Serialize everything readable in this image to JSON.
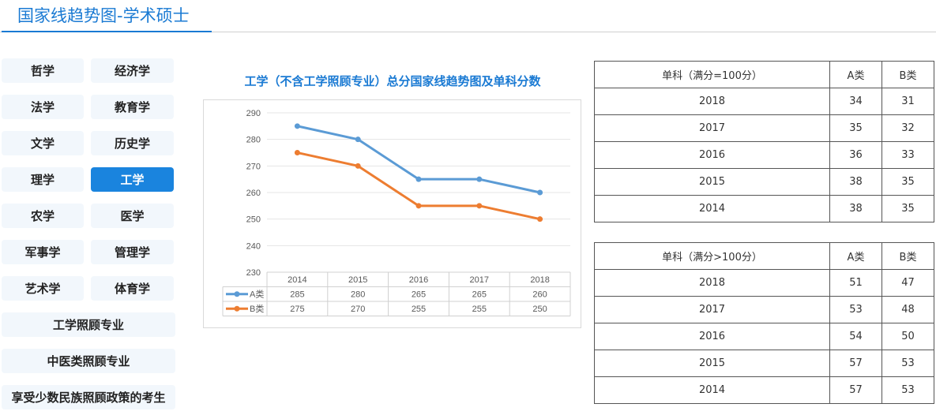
{
  "page_title": "国家线趋势图-学术硕士",
  "disciplines": [
    "哲学",
    "经济学",
    "法学",
    "教育学",
    "文学",
    "历史学",
    "理学",
    "工学",
    "农学",
    "医学",
    "军事学",
    "管理学",
    "艺术学",
    "体育学"
  ],
  "special_categories": [
    "工学照顾专业",
    "中医类照顾专业",
    "享受少数民族照顾政策的考生"
  ],
  "active_discipline": "工学",
  "colors": {
    "accent": "#1a7ad3",
    "active_button": "#1a84de",
    "series_a": "#5b9bd5",
    "series_b": "#ed7d31"
  },
  "chart_data": {
    "type": "line",
    "title": "工学（不含工学照顾专业）总分国家线趋势图及单科分数",
    "categories": [
      "2014",
      "2015",
      "2016",
      "2017",
      "2018"
    ],
    "series": [
      {
        "name": "A类",
        "values": [
          285,
          280,
          265,
          265,
          260
        ]
      },
      {
        "name": "B类",
        "values": [
          275,
          270,
          255,
          255,
          250
        ]
      }
    ],
    "yticks": [
      230,
      240,
      250,
      260,
      270,
      280,
      290
    ],
    "ylim": [
      230,
      290
    ],
    "grid": true,
    "legend": "data-table-bottom"
  },
  "tables": [
    {
      "header": [
        "单科（满分=100分）",
        "A类",
        "B类"
      ],
      "rows": [
        [
          "2018",
          "34",
          "31"
        ],
        [
          "2017",
          "35",
          "32"
        ],
        [
          "2016",
          "36",
          "33"
        ],
        [
          "2015",
          "38",
          "35"
        ],
        [
          "2014",
          "38",
          "35"
        ]
      ]
    },
    {
      "header": [
        "单科（满分>100分）",
        "A类",
        "B类"
      ],
      "rows": [
        [
          "2018",
          "51",
          "47"
        ],
        [
          "2017",
          "53",
          "48"
        ],
        [
          "2016",
          "54",
          "50"
        ],
        [
          "2015",
          "57",
          "53"
        ],
        [
          "2014",
          "57",
          "53"
        ]
      ]
    }
  ]
}
